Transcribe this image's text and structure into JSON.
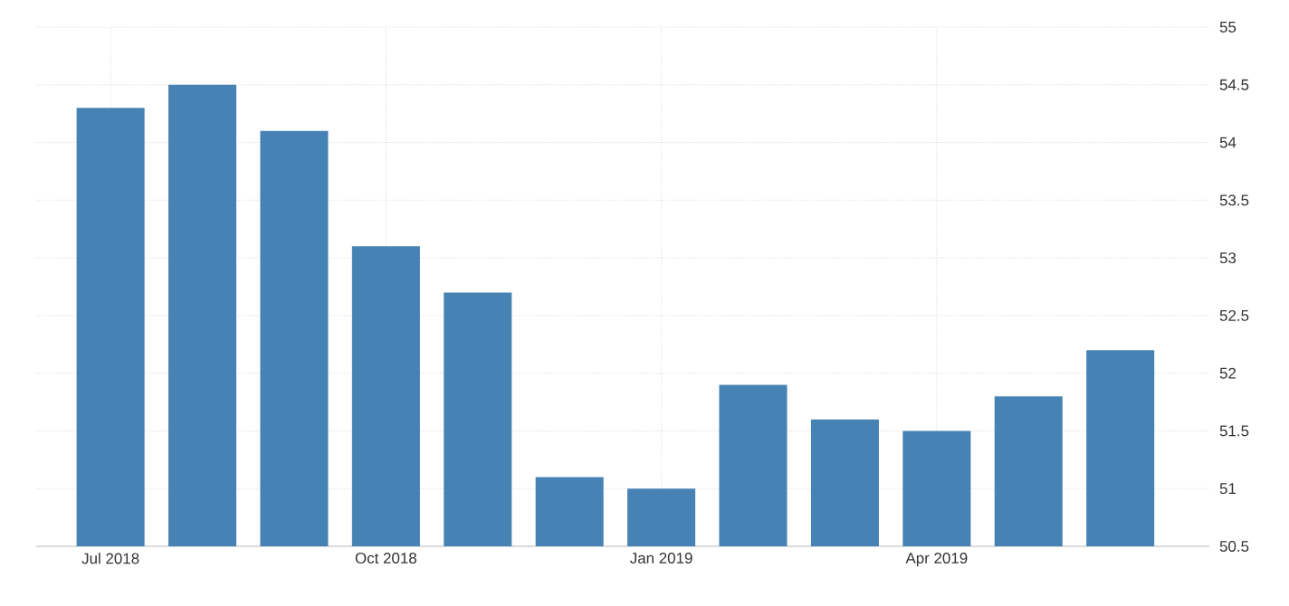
{
  "chart_data": {
    "type": "bar",
    "categories": [
      "Jul 2018",
      null,
      null,
      "Oct 2018",
      null,
      null,
      "Jan 2019",
      null,
      null,
      "Apr 2019",
      null,
      null
    ],
    "values": [
      54.3,
      54.5,
      54.1,
      53.1,
      52.7,
      51.1,
      51.0,
      51.9,
      51.6,
      51.5,
      51.8,
      52.2
    ],
    "color": "#4682b4",
    "ylim": [
      50.5,
      55
    ],
    "yticks": [
      50.5,
      51,
      51.5,
      52,
      52.5,
      53,
      53.5,
      54,
      54.5,
      55
    ],
    "grid": true
  }
}
